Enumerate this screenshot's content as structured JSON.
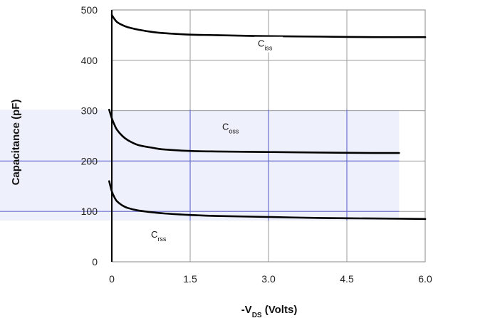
{
  "chart_data": {
    "type": "line",
    "xlabel": "-V",
    "xlabel_sub": "DS",
    "xlabel_unit": " (Volts)",
    "ylabel": "Capacitance (pF)",
    "xlim": [
      0,
      6.0
    ],
    "ylim": [
      0,
      500
    ],
    "x_ticks": [
      "0",
      "1.5",
      "3.0",
      "4.5",
      "6.0"
    ],
    "y_ticks": [
      "0",
      "100",
      "200",
      "300",
      "400",
      "500"
    ],
    "grid": true,
    "highlight_band": {
      "y_range": [
        82,
        302
      ],
      "x_range": [
        -0.2,
        5.5
      ]
    },
    "colors": {
      "band": "#eef0fb",
      "grid": "#6b6fd0",
      "frame": "#888888",
      "line": "#000000"
    },
    "series": [
      {
        "name": "C",
        "sub": "iss",
        "x": [
          0,
          0.05,
          0.1,
          0.2,
          0.3,
          0.5,
          0.8,
          1.0,
          1.5,
          2.0,
          3.0,
          4.0,
          5.0,
          6.0
        ],
        "y": [
          490,
          482,
          476,
          470,
          466,
          461,
          456,
          454,
          451,
          450,
          448,
          447,
          446,
          446
        ]
      },
      {
        "name": "C",
        "sub": "oss",
        "x": [
          -0.05,
          0,
          0.05,
          0.1,
          0.2,
          0.3,
          0.5,
          0.8,
          1.0,
          1.5,
          2.0,
          3.0,
          4.0,
          5.0,
          5.5
        ],
        "y": [
          302,
          285,
          272,
          262,
          250,
          242,
          232,
          226,
          223,
          220,
          219,
          218,
          217,
          216,
          216
        ]
      },
      {
        "name": "C",
        "sub": "rss",
        "x": [
          -0.05,
          0,
          0.05,
          0.1,
          0.2,
          0.3,
          0.5,
          0.8,
          1.0,
          1.5,
          2.0,
          3.0,
          4.0,
          5.0,
          6.0
        ],
        "y": [
          160,
          140,
          128,
          120,
          112,
          107,
          102,
          98,
          96,
          93,
          91,
          89,
          87,
          86,
          85
        ]
      }
    ]
  }
}
